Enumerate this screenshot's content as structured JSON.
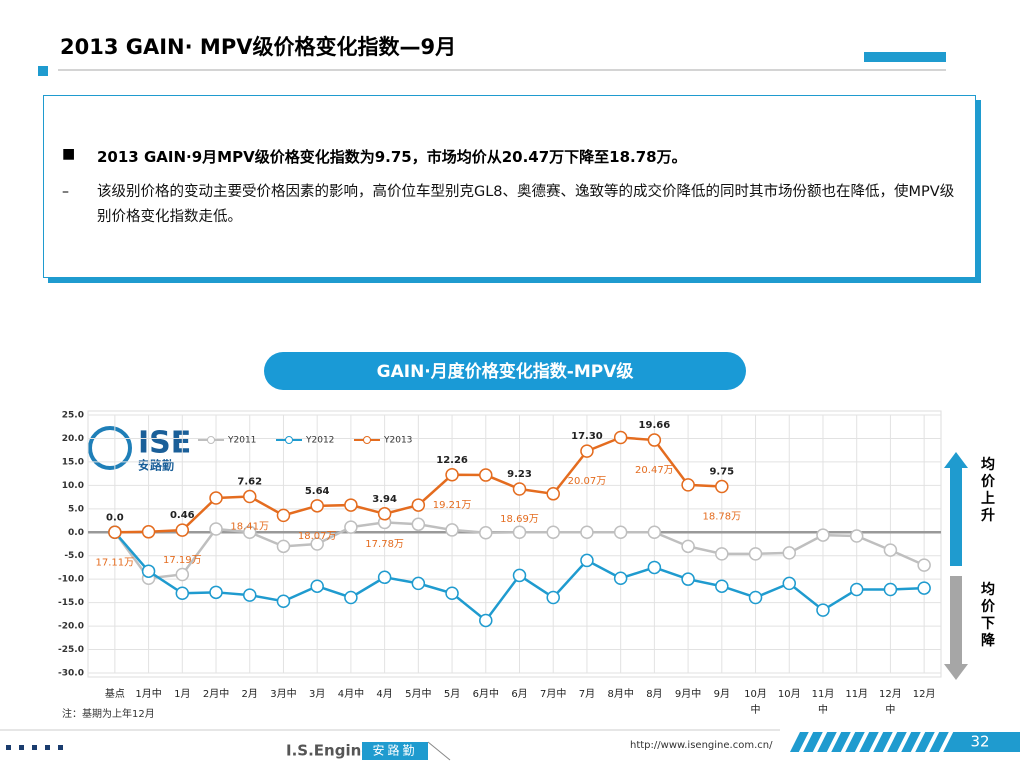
{
  "header": {
    "title": "2013 GAIN· MPV级价格变化指数—9月"
  },
  "summary": {
    "bullet": "2013 GAIN·9月MPV级价格变化指数为9.75，市场均价从20.47万下降至18.78万。",
    "detail": "该级别价格的变动主要受价格因素的影响，高价位车型别克GL8、奥德赛、逸致等的成交价降低的同时其市场份额也在降低，使MPV级别价格变化指数走低。"
  },
  "chart_data": {
    "type": "line",
    "title": "GAIN·月度价格变化指数-MPV级",
    "categories": [
      "基点",
      "1月中",
      "1月",
      "2月中",
      "2月",
      "3月中",
      "3月",
      "4月中",
      "4月",
      "5月中",
      "5月",
      "6月中",
      "6月",
      "7月中",
      "7月",
      "8月中",
      "8月",
      "9月中",
      "9月",
      "10月中",
      "10月",
      "11月中",
      "11月",
      "12月中",
      "12月"
    ],
    "series": [
      {
        "name": "Y2011",
        "color": "#bfbfbf",
        "values": [
          0,
          -9.8,
          -9.0,
          0.7,
          0,
          -3,
          -2.5,
          1.1,
          2.1,
          1.7,
          0.5,
          -0.1,
          0,
          0,
          0,
          0,
          0,
          -3,
          -4.6,
          -4.6,
          -4.4,
          -0.6,
          -0.8,
          -3.8,
          -7.0
        ]
      },
      {
        "name": "Y2012",
        "color": "#1f9bcf",
        "values": [
          0,
          -8.3,
          -13,
          -12.8,
          -13.4,
          -14.7,
          -11.5,
          -13.9,
          -9.6,
          -10.9,
          -13,
          -18.8,
          -9.2,
          -13.9,
          -6,
          -9.8,
          -7.5,
          -10,
          -11.5,
          -13.9,
          -10.9,
          -16.6,
          -12.2,
          -12.2,
          -11.9
        ]
      },
      {
        "name": "Y2013",
        "color": "#e46c1f",
        "values": [
          0,
          0.1,
          0.46,
          7.3,
          7.62,
          3.6,
          5.64,
          5.8,
          3.94,
          5.8,
          12.26,
          12.2,
          9.23,
          8.2,
          17.3,
          20.2,
          19.66,
          10.1,
          9.75,
          null,
          null,
          null,
          null,
          null,
          null
        ],
        "value_labels": [
          "0.0",
          null,
          "0.46",
          null,
          "7.62",
          null,
          "5.64",
          null,
          "3.94",
          null,
          "12.26",
          null,
          "9.23",
          null,
          "17.30",
          null,
          "19.66",
          null,
          "9.75",
          null,
          null,
          null,
          null,
          null,
          null
        ],
        "price_labels": [
          "17.11万",
          null,
          "17.19万",
          null,
          "18.41万",
          null,
          "18.07万",
          null,
          "17.78万",
          null,
          "19.21万",
          null,
          "18.69万",
          null,
          "20.07万",
          null,
          "20.47万",
          null,
          "18.78万",
          null,
          null,
          null,
          null,
          null,
          null
        ]
      }
    ],
    "ylim": [
      -30,
      25
    ],
    "yticks": [
      {
        "value": 25,
        "label": "25.0"
      },
      {
        "value": 20,
        "label": "20.0"
      },
      {
        "value": 15,
        "label": "15.0"
      },
      {
        "value": 10,
        "label": "10.0"
      },
      {
        "value": 5,
        "label": "5.0"
      },
      {
        "value": 0,
        "label": "0.0"
      },
      {
        "value": -5,
        "label": "-5.0"
      },
      {
        "value": -10,
        "label": "-10.0"
      },
      {
        "value": -15,
        "label": "-15.0"
      },
      {
        "value": -20,
        "label": "-20.0"
      },
      {
        "value": -25,
        "label": "-25.0"
      },
      {
        "value": -30,
        "label": "-30.0"
      }
    ],
    "grid": true,
    "legend": "top-left",
    "note": "注：基期为上年12月",
    "up_label": "均价上升",
    "down_label": "均价下降"
  },
  "logo": {
    "text": "ISE",
    "subtext": "安路勤"
  },
  "footer": {
    "brand": "I.S.Engine",
    "brand_cn": "安路勤",
    "url": "http://www.isengine.com.cn/",
    "page": "32"
  }
}
